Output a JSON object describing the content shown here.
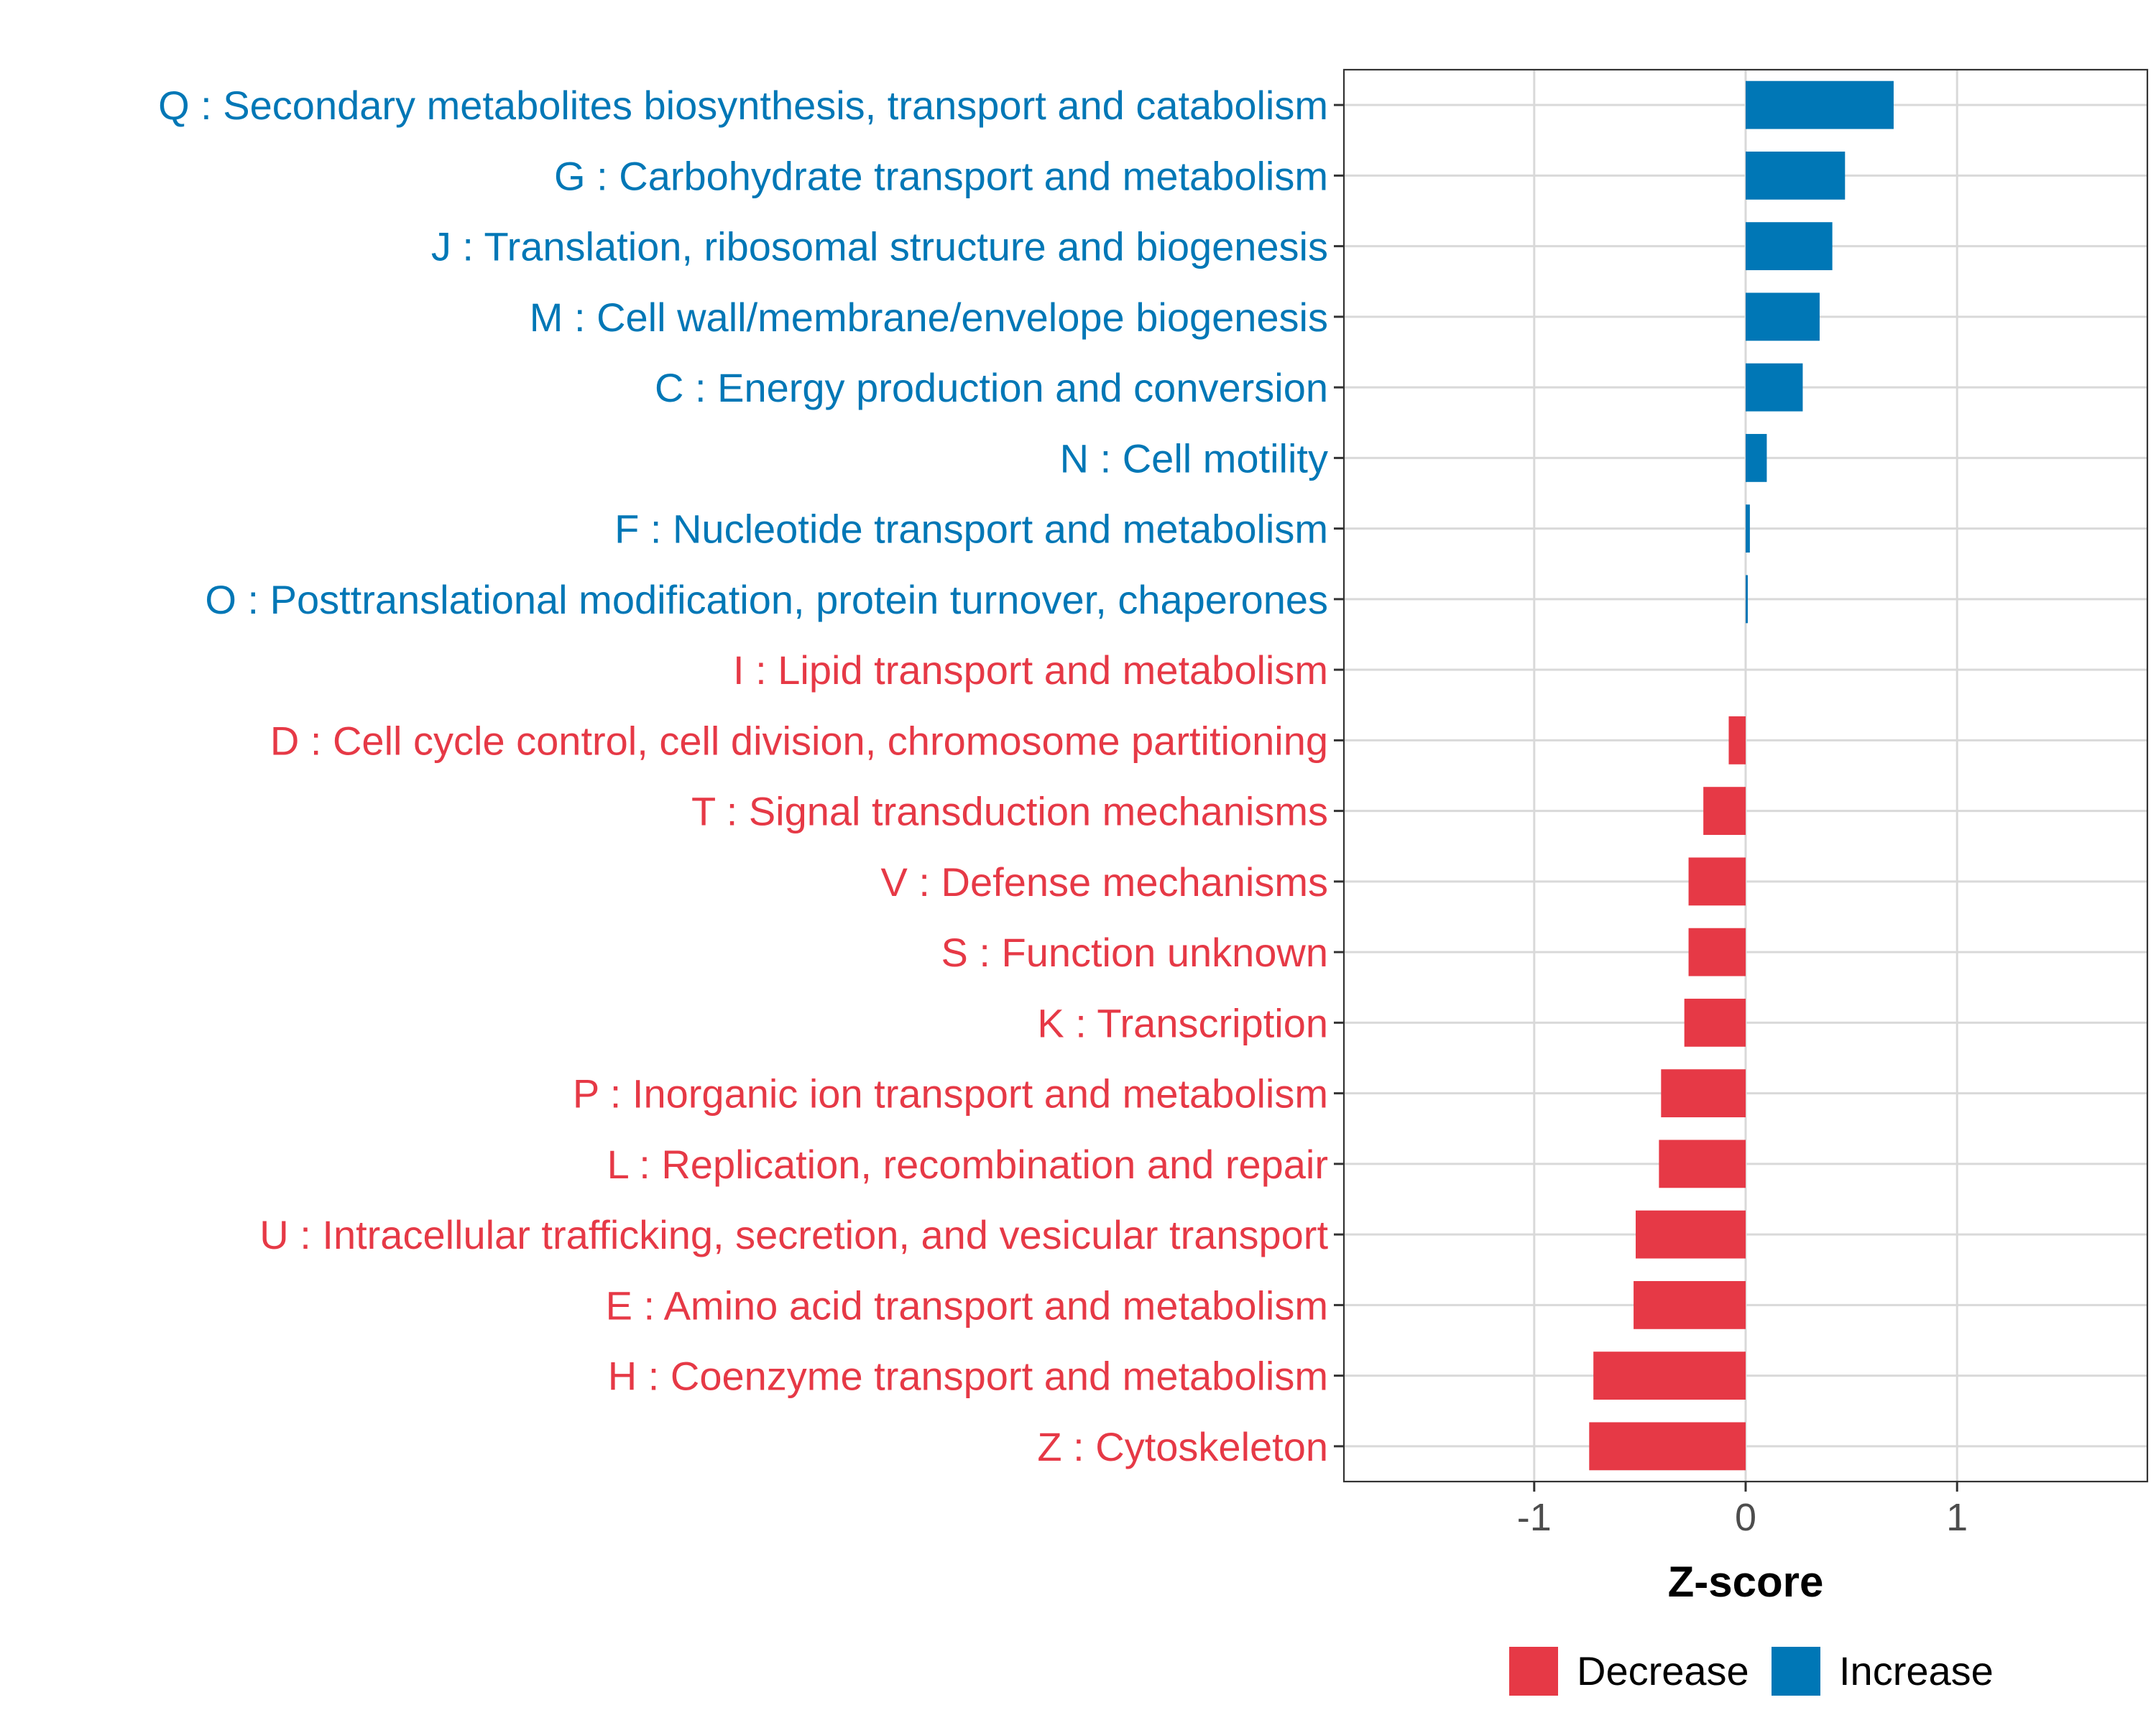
{
  "chart_data": {
    "type": "bar",
    "orientation": "horizontal",
    "xlabel": "Z-score",
    "ylabel": "",
    "xlim": [
      -1.9,
      1.9
    ],
    "xticks": [
      -1,
      0,
      1
    ],
    "xtick_labels": [
      "-1",
      "0",
      "1"
    ],
    "grid": true,
    "legend_position": "bottom",
    "colors": {
      "Decrease": "#e63946",
      "Increase": "#0077b6"
    },
    "legend": [
      {
        "name": "Decrease",
        "color": "#e63946"
      },
      {
        "name": "Increase",
        "color": "#0077b6"
      }
    ],
    "categories": [
      "Q : Secondary metabolites biosynthesis, transport and catabolism",
      "G : Carbohydrate transport and metabolism",
      "J : Translation, ribosomal structure and biogenesis",
      "M : Cell wall/membrane/envelope biogenesis",
      "C : Energy production and conversion",
      "N : Cell motility",
      "F : Nucleotide transport and metabolism",
      "O : Posttranslational modification, protein turnover, chaperones",
      "I : Lipid transport and metabolism",
      "D : Cell cycle control, cell division, chromosome partitioning",
      "T : Signal transduction mechanisms",
      "V : Defense mechanisms",
      "S : Function unknown",
      "K : Transcription",
      "P : Inorganic ion transport and metabolism",
      "L : Replication, recombination and repair",
      "U : Intracellular trafficking, secretion, and vesicular transport",
      "E : Amino acid transport and metabolism",
      "H : Coenzyme transport and metabolism",
      "Z : Cytoskeleton"
    ],
    "values": [
      0.7,
      0.47,
      0.41,
      0.35,
      0.27,
      0.1,
      0.02,
      0.01,
      0.0,
      -0.08,
      -0.2,
      -0.27,
      -0.27,
      -0.29,
      -0.4,
      -0.41,
      -0.52,
      -0.53,
      -0.72,
      -0.74
    ],
    "direction": [
      "Increase",
      "Increase",
      "Increase",
      "Increase",
      "Increase",
      "Increase",
      "Increase",
      "Increase",
      "Decrease",
      "Decrease",
      "Decrease",
      "Decrease",
      "Decrease",
      "Decrease",
      "Decrease",
      "Decrease",
      "Decrease",
      "Decrease",
      "Decrease",
      "Decrease"
    ]
  }
}
